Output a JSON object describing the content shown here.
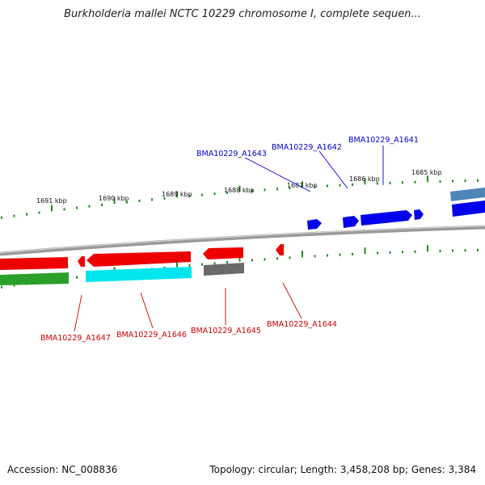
{
  "title": "Burkholderia mallei NCTC 10229 chromosome I, complete sequen...",
  "accession": "Accession: NC_008836",
  "summary": "Topology: circular; Length: 3,458,208 bp; Genes: 3,384",
  "colors": {
    "backbone": "#8a8a8a",
    "tick": "#1f8a1f",
    "forward_label": "#0000cc",
    "reverse_label": "#cc0000",
    "cds_blue": "#0000ee",
    "cds_red": "#ee0000",
    "cds_cyan": "#00e5ee",
    "cds_green": "#2aa02a",
    "cds_gray": "#6a6a6a",
    "cds_steel": "#4f86b8"
  },
  "scale_labels": [
    "1691 kbp",
    "1690 kbp",
    "1689 kbp",
    "1688 kbp",
    "1687 kbp",
    "1686 kbp",
    "1685 kbp"
  ],
  "genes": [
    {
      "name": "BMA10229_A1643",
      "strand": "forward"
    },
    {
      "name": "BMA10229_A1642",
      "strand": "forward"
    },
    {
      "name": "BMA10229_A1641",
      "strand": "forward"
    },
    {
      "name": "BMA10229_A1647",
      "strand": "reverse"
    },
    {
      "name": "BMA10229_A1646",
      "strand": "reverse"
    },
    {
      "name": "BMA10229_A1645",
      "strand": "reverse"
    },
    {
      "name": "BMA10229_A1644",
      "strand": "reverse"
    }
  ]
}
